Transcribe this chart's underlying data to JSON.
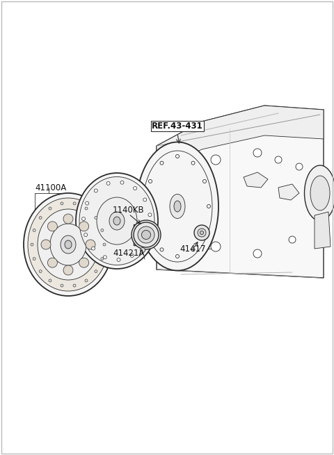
{
  "bg_color": "#ffffff",
  "line_color": "#2a2a2a",
  "border_color": "#bbbbbb",
  "labels": {
    "ref": "REF.43-431",
    "part1": "41100A",
    "part2": "1140KB",
    "part3": "41421A",
    "part4": "41417"
  },
  "figsize": [
    4.8,
    6.55
  ],
  "dpi": 100
}
